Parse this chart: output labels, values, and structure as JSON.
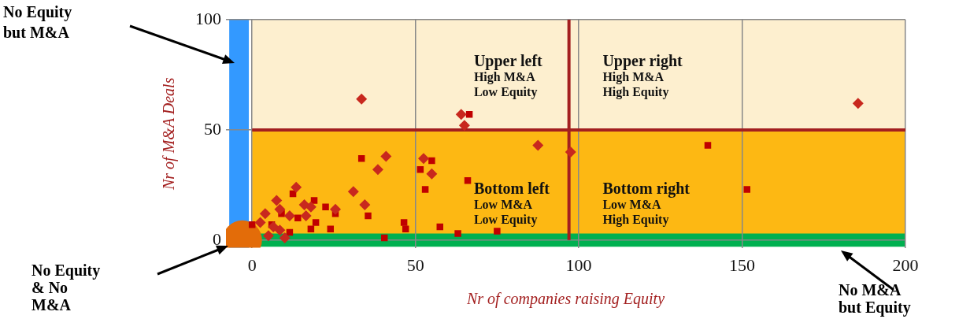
{
  "chart_data": {
    "type": "scatter",
    "xlabel": "Nr of companies raising Equity",
    "ylabel": "Nr of M&A Deals",
    "xlim": [
      -8,
      200
    ],
    "ylim": [
      -3.5,
      100
    ],
    "xticks": [
      0,
      50,
      100,
      150,
      200
    ],
    "yticks": [
      0,
      50,
      100
    ],
    "grid": true,
    "legend": false,
    "bands": [
      {
        "axis": "y",
        "from": 50,
        "to": 100,
        "color": "#fdefcf"
      },
      {
        "axis": "y",
        "from": 0,
        "to": 50,
        "color": "#fdb813"
      },
      {
        "axis": "x",
        "from": -7,
        "to": -1,
        "color": "#3399ff"
      },
      {
        "axis": "y",
        "from": -3,
        "to": 3,
        "color": "#00b050"
      }
    ],
    "ref_lines": [
      {
        "axis": "x",
        "value": 97,
        "color": "#a31f1f"
      },
      {
        "axis": "y",
        "value": 50,
        "color": "#a31f1f"
      }
    ],
    "annotations": [
      "Upper left\nHigh M&A\nLow Equity",
      "Upper right\nHigh M&A\nHigh Equity",
      "Bottom left\nLow M&A\nLow Equity",
      "Bottom right\nLow M&A\nHigh Equity",
      "No Equity\nbut M&A",
      "No Equity\n& No\nM&A",
      "No M&A\nbut Equity"
    ],
    "series": [
      {
        "type": "scatter",
        "marker": "diamond",
        "color": "#c8281e",
        "x": [
          33.5,
          64,
          65,
          87.5,
          97.5,
          41,
          52.5,
          38.5,
          55,
          31,
          34.5,
          13.5,
          7.5,
          4,
          8.5,
          11.5,
          16,
          18,
          16.5,
          2.5,
          6.5,
          10,
          5,
          25.5,
          8.5,
          185.5
        ],
        "values": [
          64,
          57,
          52,
          43,
          40,
          38,
          37,
          32,
          30,
          22,
          16,
          24,
          18,
          12,
          14,
          11,
          16,
          15,
          11,
          8,
          6,
          1,
          2,
          14,
          4.5,
          62
        ]
      },
      {
        "type": "scatter",
        "marker": "square",
        "color": "#c00000",
        "x": [
          66.5,
          33.5,
          55,
          51.5,
          66,
          53,
          12.5,
          35.5,
          46.5,
          47,
          57.5,
          63,
          75,
          40.5,
          19,
          22.5,
          25.5,
          24,
          18,
          11.5,
          0,
          19.5,
          14,
          9,
          6,
          139.5,
          151.5
        ],
        "values": [
          57,
          37,
          36,
          32,
          27,
          23,
          21,
          11,
          8,
          5,
          6,
          3,
          4,
          1,
          18,
          15,
          12,
          5,
          5,
          3.5,
          7,
          8,
          10,
          12,
          7,
          43,
          23
        ]
      },
      {
        "type": "scatter",
        "marker": "circle",
        "color": "#e36c09",
        "x": [
          -3
        ],
        "values": [
          0
        ]
      }
    ]
  }
}
